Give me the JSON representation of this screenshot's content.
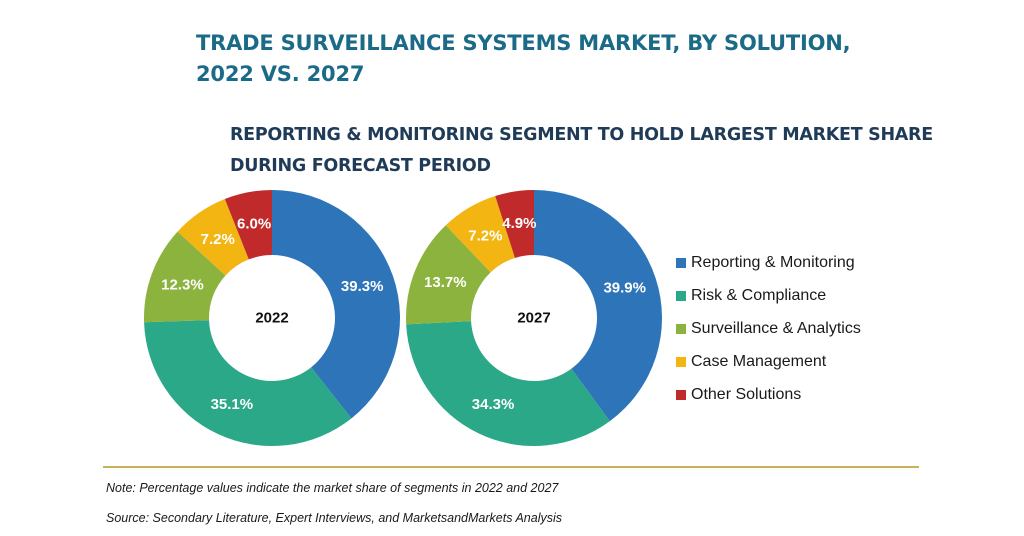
{
  "title_line1": "TRADE SURVEILLANCE SYSTEMS MARKET, BY SOLUTION,",
  "title_line2": "2022 VS. 2027",
  "subtitle_line1": "REPORTING & MONITORING SEGMENT TO HOLD LARGEST MARKET SHARE",
  "subtitle_line2": "DURING FORECAST PERIOD",
  "note": "Note: Percentage values indicate the market share of segments in 2022 and 2027",
  "source": "Source: Secondary Literature, Expert Interviews, and MarketsandMarkets Analysis",
  "chart_data": {
    "type": "pie",
    "variant": "donut",
    "legend_position": "right",
    "categories": [
      "Reporting & Monitoring",
      "Risk & Compliance",
      "Surveillance & Analytics",
      "Case Management",
      "Other Solutions"
    ],
    "colors": [
      "#2e74b8",
      "#2aa887",
      "#8cb33e",
      "#f2b511",
      "#c12a2a"
    ],
    "series": [
      {
        "name": "2022",
        "values": [
          39.3,
          35.1,
          12.3,
          7.2,
          6.0
        ],
        "labels": [
          "39.3%",
          "35.1%",
          "12.3%",
          "7.2%",
          "6.0%"
        ]
      },
      {
        "name": "2027",
        "values": [
          39.9,
          34.3,
          13.7,
          7.2,
          4.9
        ],
        "labels": [
          "39.9%",
          "34.3%",
          "13.7%",
          "7.2%",
          "4.9%"
        ]
      }
    ]
  }
}
